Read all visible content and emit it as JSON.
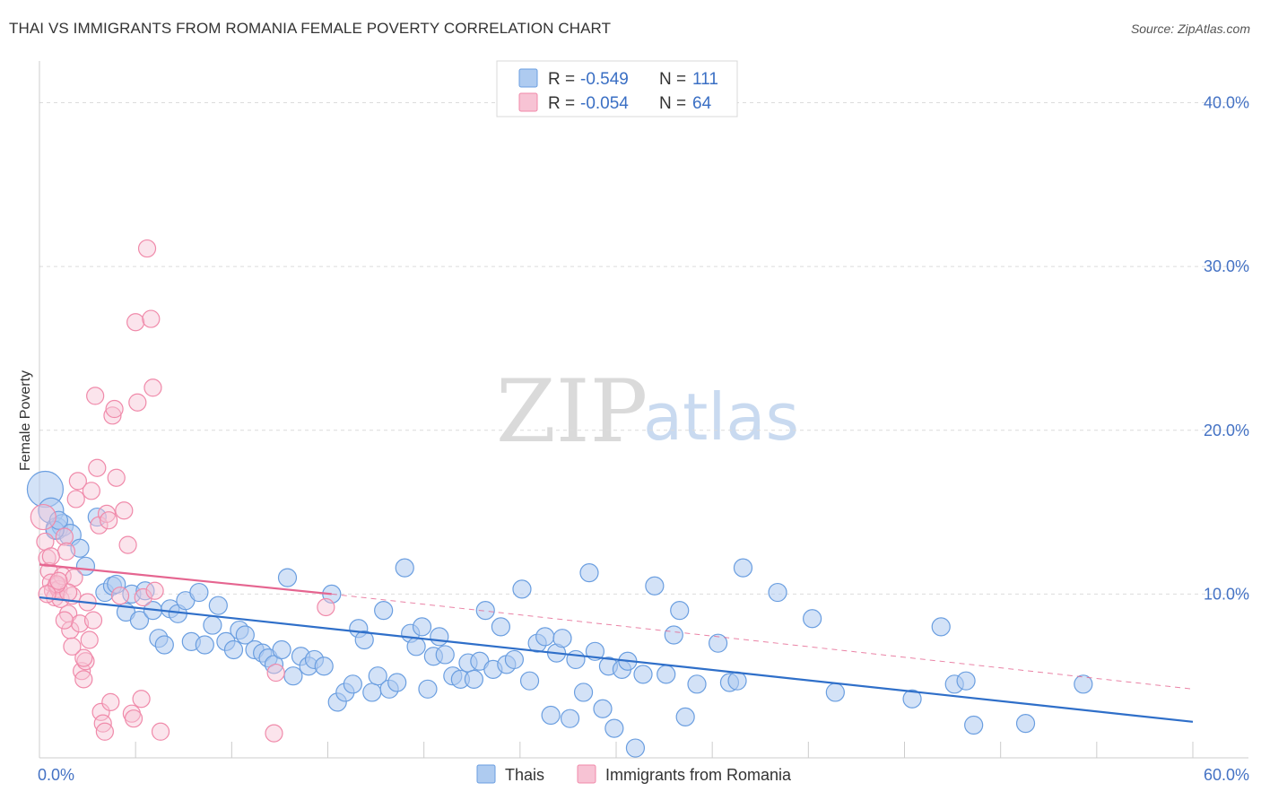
{
  "header": {
    "title": "THAI VS IMMIGRANTS FROM ROMANIA FEMALE POVERTY CORRELATION CHART",
    "source": "Source: ZipAtlas.com"
  },
  "watermark": {
    "zip": "ZIP",
    "atlas": "atlas"
  },
  "colors": {
    "thais": "#6a9ee0",
    "thais_fill": "#aecbf0",
    "romania": "#f08aaa",
    "romania_fill": "#f7c3d4",
    "thais_trend": "#2f6fc9",
    "romania_trend": "#e56590",
    "axis_text": "#4472c4"
  },
  "legend": {
    "rows": [
      {
        "r_label": "R =",
        "r_value": "-0.549",
        "n_label": "N =",
        "n_value": "111"
      },
      {
        "r_label": "R =",
        "r_value": "-0.054",
        "n_label": "N =",
        "n_value": "64"
      }
    ]
  },
  "bottom_legend": {
    "items": [
      "Thais",
      "Immigrants from Romania"
    ]
  },
  "chart_data": {
    "type": "scatter",
    "title": "THAI VS IMMIGRANTS FROM ROMANIA FEMALE POVERTY CORRELATION CHART",
    "xlabel": "",
    "ylabel": "Female Poverty",
    "xlim": [
      0,
      60
    ],
    "ylim": [
      0,
      42
    ],
    "x_tick_labels": [
      "0.0%",
      "60.0%"
    ],
    "y_ticks": [
      10,
      20,
      30,
      40
    ],
    "y_tick_labels": [
      "10.0%",
      "20.0%",
      "30.0%",
      "40.0%"
    ],
    "grid": true,
    "series": [
      {
        "name": "Thais",
        "R": -0.549,
        "N": 111,
        "trend": {
          "x": [
            0,
            60
          ],
          "y": [
            9.8,
            2.2
          ]
        },
        "points": [
          [
            0.3,
            16.4
          ],
          [
            0.6,
            15.1
          ],
          [
            0.9,
            14.0
          ],
          [
            1.2,
            14.2
          ],
          [
            1.6,
            13.6
          ],
          [
            2.1,
            12.8
          ],
          [
            2.4,
            11.7
          ],
          [
            3.0,
            14.7
          ],
          [
            3.4,
            10.1
          ],
          [
            3.8,
            10.5
          ],
          [
            4.0,
            10.6
          ],
          [
            4.5,
            8.9
          ],
          [
            4.8,
            10.0
          ],
          [
            5.2,
            8.4
          ],
          [
            5.5,
            10.2
          ],
          [
            5.9,
            9.0
          ],
          [
            6.2,
            7.3
          ],
          [
            6.5,
            6.9
          ],
          [
            6.8,
            9.1
          ],
          [
            7.2,
            8.8
          ],
          [
            7.6,
            9.6
          ],
          [
            7.9,
            7.1
          ],
          [
            8.3,
            10.1
          ],
          [
            8.6,
            6.9
          ],
          [
            9.0,
            8.1
          ],
          [
            9.3,
            9.3
          ],
          [
            9.7,
            7.1
          ],
          [
            10.1,
            6.6
          ],
          [
            10.4,
            7.8
          ],
          [
            10.7,
            7.5
          ],
          [
            11.2,
            6.6
          ],
          [
            11.6,
            6.4
          ],
          [
            11.9,
            6.1
          ],
          [
            12.2,
            5.7
          ],
          [
            12.6,
            6.6
          ],
          [
            12.9,
            11.0
          ],
          [
            13.2,
            5.0
          ],
          [
            13.6,
            6.2
          ],
          [
            14.0,
            5.6
          ],
          [
            14.3,
            6.0
          ],
          [
            14.8,
            5.6
          ],
          [
            15.2,
            10.0
          ],
          [
            15.5,
            3.4
          ],
          [
            15.9,
            4.0
          ],
          [
            16.3,
            4.5
          ],
          [
            16.6,
            7.9
          ],
          [
            16.9,
            7.2
          ],
          [
            17.3,
            4.0
          ],
          [
            17.6,
            5.0
          ],
          [
            17.9,
            9.0
          ],
          [
            18.2,
            4.2
          ],
          [
            18.6,
            4.6
          ],
          [
            19.0,
            11.6
          ],
          [
            19.3,
            7.6
          ],
          [
            19.6,
            6.8
          ],
          [
            19.9,
            8.0
          ],
          [
            20.2,
            4.2
          ],
          [
            20.5,
            6.2
          ],
          [
            20.8,
            7.4
          ],
          [
            21.1,
            6.3
          ],
          [
            21.5,
            5.0
          ],
          [
            21.9,
            4.8
          ],
          [
            22.3,
            5.8
          ],
          [
            22.6,
            4.8
          ],
          [
            22.9,
            5.9
          ],
          [
            23.2,
            9.0
          ],
          [
            23.6,
            5.4
          ],
          [
            24.0,
            8.0
          ],
          [
            24.3,
            5.7
          ],
          [
            24.7,
            6.0
          ],
          [
            25.1,
            10.3
          ],
          [
            25.5,
            4.7
          ],
          [
            25.9,
            7.0
          ],
          [
            26.3,
            7.4
          ],
          [
            26.6,
            2.6
          ],
          [
            26.9,
            6.4
          ],
          [
            27.2,
            7.3
          ],
          [
            27.6,
            2.4
          ],
          [
            27.9,
            6.0
          ],
          [
            28.3,
            4.0
          ],
          [
            28.6,
            11.3
          ],
          [
            28.9,
            6.5
          ],
          [
            29.3,
            3.0
          ],
          [
            29.6,
            5.6
          ],
          [
            29.9,
            1.8
          ],
          [
            30.3,
            5.4
          ],
          [
            30.6,
            5.9
          ],
          [
            31.0,
            0.6
          ],
          [
            31.4,
            5.1
          ],
          [
            32.0,
            10.5
          ],
          [
            32.6,
            5.1
          ],
          [
            33.0,
            7.5
          ],
          [
            33.3,
            9.0
          ],
          [
            33.6,
            2.5
          ],
          [
            34.2,
            4.5
          ],
          [
            35.3,
            7.0
          ],
          [
            35.9,
            4.6
          ],
          [
            36.3,
            4.7
          ],
          [
            36.6,
            11.6
          ],
          [
            38.4,
            10.1
          ],
          [
            40.2,
            8.5
          ],
          [
            41.4,
            4.0
          ],
          [
            45.4,
            3.6
          ],
          [
            46.9,
            8.0
          ],
          [
            47.6,
            4.5
          ],
          [
            48.2,
            4.7
          ],
          [
            48.6,
            2.0
          ],
          [
            51.3,
            2.1
          ],
          [
            54.3,
            4.5
          ],
          [
            0.8,
            13.9
          ],
          [
            1.0,
            14.5
          ]
        ],
        "sizes": "point at 0.3,16.4 is a large bubble"
      },
      {
        "name": "Immigrants from Romania",
        "R": -0.054,
        "N": 64,
        "trend_solid": {
          "x": [
            0,
            15.2
          ],
          "y": [
            11.8,
            10.0
          ]
        },
        "trend_dashed": {
          "x": [
            15.2,
            60
          ],
          "y": [
            10.0,
            4.2
          ]
        },
        "points": [
          [
            0.2,
            14.7
          ],
          [
            0.3,
            13.2
          ],
          [
            0.4,
            12.2
          ],
          [
            0.5,
            11.4
          ],
          [
            0.6,
            10.7
          ],
          [
            0.7,
            10.2
          ],
          [
            0.8,
            9.8
          ],
          [
            0.9,
            10.5
          ],
          [
            1.0,
            10.3
          ],
          [
            1.1,
            9.7
          ],
          [
            1.2,
            11.1
          ],
          [
            1.3,
            13.5
          ],
          [
            1.4,
            12.6
          ],
          [
            1.5,
            8.8
          ],
          [
            1.6,
            7.8
          ],
          [
            1.7,
            9.9
          ],
          [
            1.8,
            11.0
          ],
          [
            1.9,
            15.8
          ],
          [
            2.0,
            16.9
          ],
          [
            2.1,
            8.2
          ],
          [
            2.2,
            5.3
          ],
          [
            2.3,
            4.8
          ],
          [
            2.4,
            5.9
          ],
          [
            2.5,
            9.5
          ],
          [
            2.6,
            7.2
          ],
          [
            2.7,
            16.3
          ],
          [
            2.8,
            8.4
          ],
          [
            2.9,
            22.1
          ],
          [
            3.0,
            17.7
          ],
          [
            3.1,
            14.2
          ],
          [
            3.2,
            2.8
          ],
          [
            3.3,
            2.1
          ],
          [
            3.4,
            1.6
          ],
          [
            3.5,
            14.9
          ],
          [
            3.6,
            14.5
          ],
          [
            3.7,
            3.4
          ],
          [
            3.8,
            20.9
          ],
          [
            3.9,
            21.3
          ],
          [
            4.0,
            17.1
          ],
          [
            4.2,
            9.9
          ],
          [
            4.4,
            15.1
          ],
          [
            4.6,
            13.0
          ],
          [
            4.8,
            2.7
          ],
          [
            4.9,
            2.4
          ],
          [
            5.0,
            26.6
          ],
          [
            5.1,
            21.7
          ],
          [
            5.3,
            3.6
          ],
          [
            5.4,
            9.8
          ],
          [
            5.6,
            31.1
          ],
          [
            5.8,
            26.8
          ],
          [
            5.9,
            22.6
          ],
          [
            6.0,
            10.2
          ],
          [
            6.3,
            1.6
          ],
          [
            1.5,
            10.1
          ],
          [
            0.9,
            10.6
          ],
          [
            0.6,
            12.3
          ],
          [
            1.3,
            8.4
          ],
          [
            2.3,
            6.1
          ],
          [
            14.9,
            9.2
          ],
          [
            12.2,
            1.5
          ],
          [
            12.3,
            5.2
          ],
          [
            1.7,
            6.8
          ],
          [
            0.4,
            10.0
          ],
          [
            1.0,
            10.8
          ]
        ]
      }
    ]
  }
}
